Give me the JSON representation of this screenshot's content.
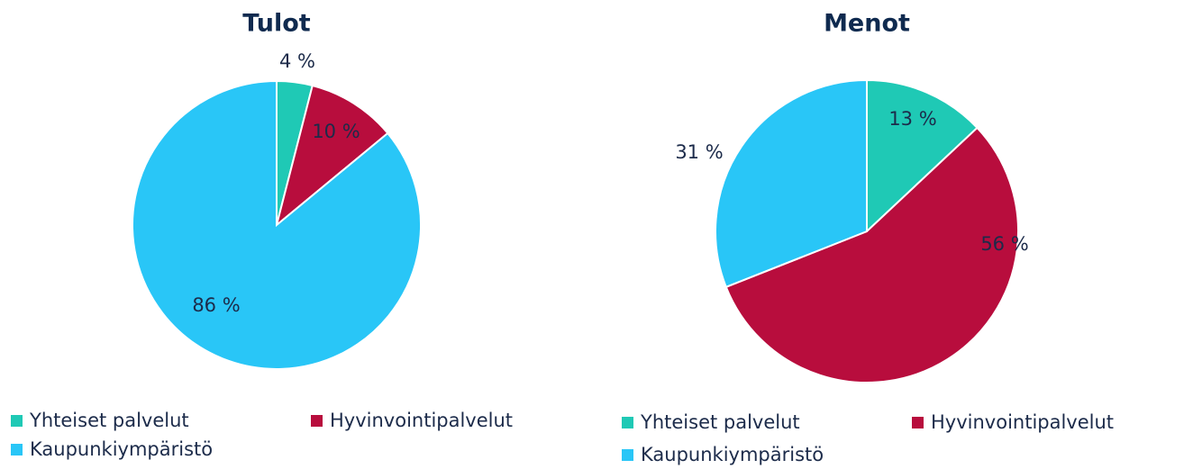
{
  "chart_data": [
    {
      "type": "pie",
      "title": "Tulot",
      "categories": [
        "Yhteiset palvelut",
        "Hyvinvointipalvelut",
        "Kaupunkiympäristö"
      ],
      "values": [
        4,
        10,
        86
      ],
      "value_labels": [
        "4 %",
        "10 %",
        "86 %"
      ],
      "colors": [
        "#1fc9b5",
        "#b80d3d",
        "#29c6f7"
      ],
      "legend": "bottom"
    },
    {
      "type": "pie",
      "title": "Menot",
      "categories": [
        "Yhteiset palvelut",
        "Hyvinvointipalvelut",
        "Kaupunkiympäristö"
      ],
      "values": [
        13,
        56,
        31
      ],
      "value_labels": [
        "13 %",
        "56 %",
        "31 %"
      ],
      "colors": [
        "#1fc9b5",
        "#b80d3d",
        "#29c6f7"
      ],
      "legend": "bottom"
    }
  ]
}
